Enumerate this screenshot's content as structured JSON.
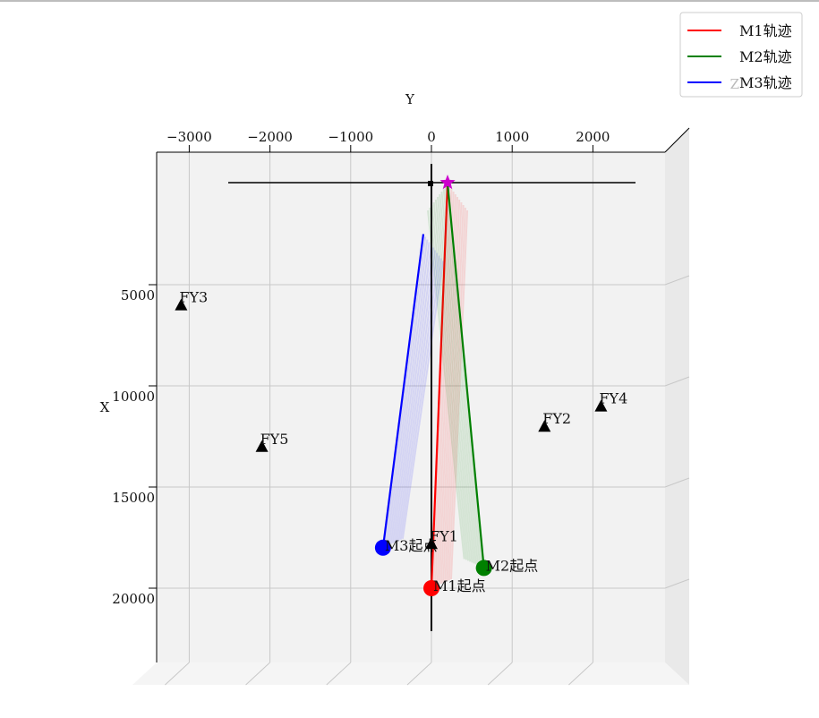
{
  "chart_data": {
    "type": "line",
    "projection": "3d",
    "xlabel": "X",
    "ylabel": "Y",
    "zlabel": "Z",
    "grid": true,
    "y_axis": {
      "label": "Y",
      "ticks": [
        -3000,
        -2000,
        -1000,
        0,
        1000,
        2000
      ],
      "tick_labels": [
        "−3000",
        "−2000",
        "−1000",
        "0",
        "1000",
        "2000"
      ]
    },
    "x_axis": {
      "label": "X",
      "ticks": [
        5000,
        10000,
        15000,
        20000
      ],
      "tick_labels": [
        "5000",
        "10000",
        "15000",
        "20000"
      ]
    },
    "legend": {
      "position": "top-right",
      "entries": [
        {
          "name": "M1轨迹",
          "color": "#ff0000"
        },
        {
          "name": "M2轨迹",
          "color": "#008000"
        },
        {
          "name": "M3轨迹",
          "color": "#0000ff"
        }
      ]
    },
    "series": [
      {
        "name": "M1轨迹",
        "color": "#ff0000",
        "start_label": "M1起点",
        "start": {
          "x": 20000,
          "y": 0
        },
        "end": {
          "x": 0,
          "y": 200
        }
      },
      {
        "name": "M2轨迹",
        "color": "#008000",
        "start_label": "M2起点",
        "start": {
          "x": 19000,
          "y": 650
        },
        "end": {
          "x": 0,
          "y": 200
        }
      },
      {
        "name": "M3轨迹",
        "color": "#0000ff",
        "start_label": "M3起点",
        "start": {
          "x": 18000,
          "y": -600
        },
        "end": {
          "x": 2500,
          "y": -100
        }
      }
    ],
    "target": {
      "x": 0,
      "y": 200,
      "color": "#cc00cc"
    },
    "markers": [
      {
        "label": "FY1",
        "x": 17800,
        "y": 0
      },
      {
        "label": "FY2",
        "x": 12000,
        "y": 1400
      },
      {
        "label": "FY3",
        "x": 6000,
        "y": -3100
      },
      {
        "label": "FY4",
        "x": 11000,
        "y": 2100
      },
      {
        "label": "FY5",
        "x": 13000,
        "y": -2100
      }
    ]
  }
}
